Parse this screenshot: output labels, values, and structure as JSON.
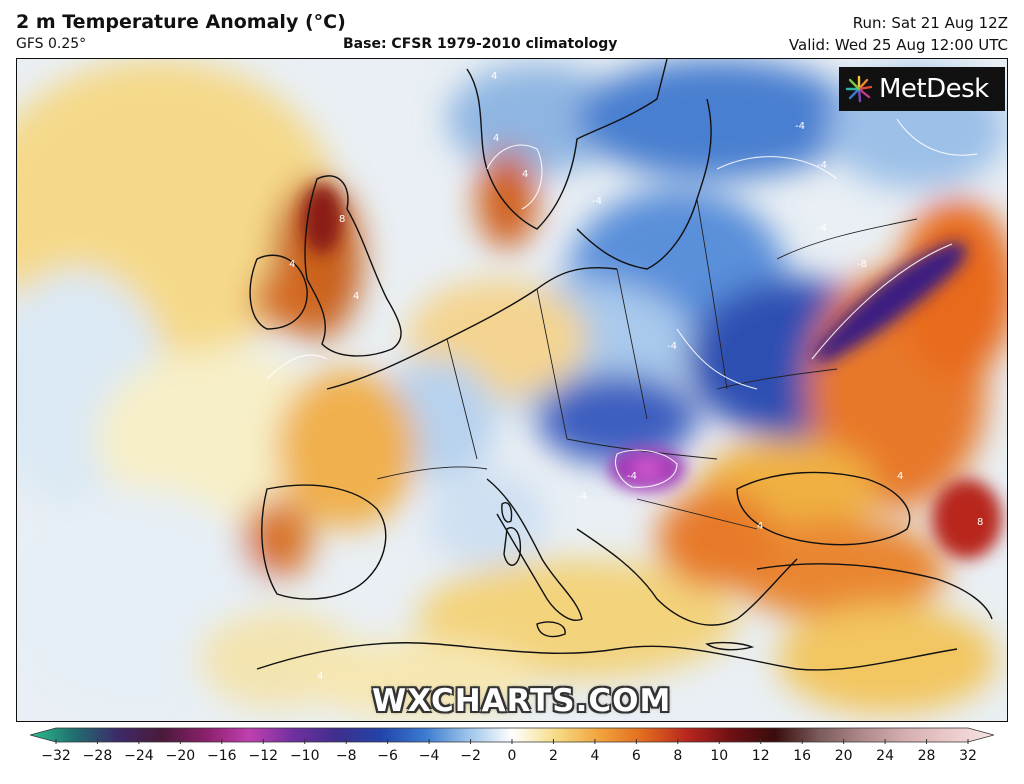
{
  "header": {
    "title": "2 m Temperature Anomaly (°C)",
    "model": "GFS 0.25°",
    "base": "Base: CFSR 1979-2010 climatology",
    "run": "Run: Sat 21 Aug 12Z",
    "valid": "Valid: Wed 25 Aug 12:00 UTC"
  },
  "logo": {
    "text": "MetDesk",
    "icon": "starburst-logo-icon"
  },
  "watermark": "WXCHARTS.COM",
  "colorbar": {
    "ticks": [
      "−32",
      "−28",
      "−24",
      "−20",
      "−16",
      "−12",
      "−10",
      "−8",
      "−6",
      "−4",
      "−2",
      "0",
      "2",
      "4",
      "6",
      "8",
      "10",
      "12",
      "16",
      "20",
      "24",
      "28",
      "32"
    ],
    "colors": [
      "#2fbf8f",
      "#1f6f6f",
      "#3d2a6a",
      "#4a1a3a",
      "#8a1f6a",
      "#c040b0",
      "#7030a0",
      "#3f2e8e",
      "#2244aa",
      "#3a7ad0",
      "#9cc4ea",
      "#ffffff",
      "#f6dc86",
      "#f1a33c",
      "#e26a1e",
      "#b8261e",
      "#6e1014",
      "#3a0c0c",
      "#7a5a5a",
      "#b08a8a",
      "#d6b0b0",
      "#eacaca",
      "#f6e4e4"
    ]
  },
  "map": {
    "contour_labels": [
      "4",
      "4",
      "-4",
      "4",
      "-4",
      "-4",
      "-4",
      "8",
      "-8",
      "4",
      "4",
      "-4",
      "-4",
      "4",
      "8",
      "4",
      "4",
      "-4"
    ]
  }
}
